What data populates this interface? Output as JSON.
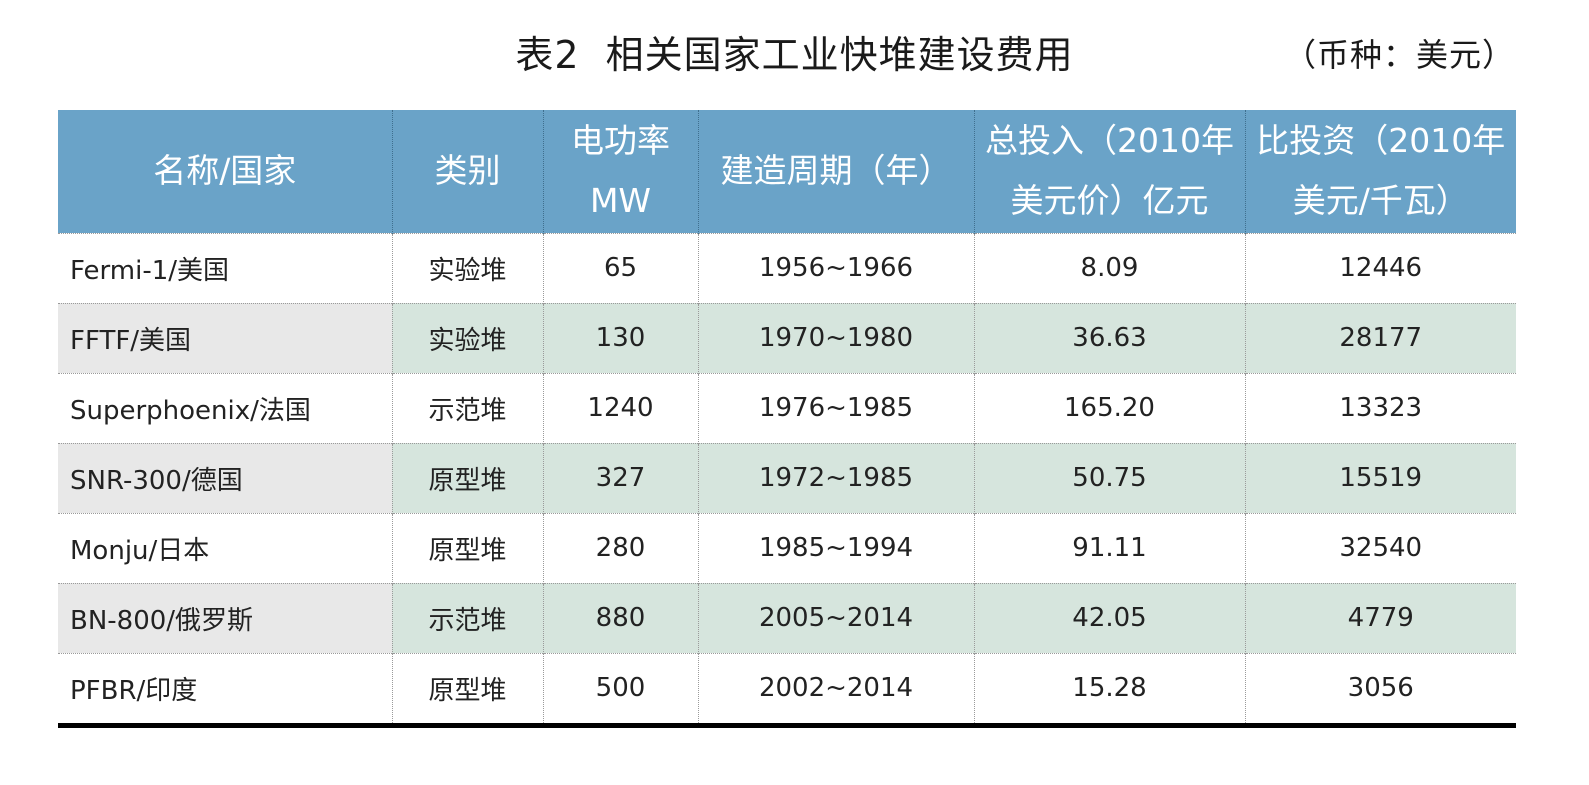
{
  "title": {
    "prefix": "表2",
    "text": "相关国家工业快堆建设费用"
  },
  "currency_note": "（币种：美元）",
  "table": {
    "headers": [
      [
        "名称/国家"
      ],
      [
        "类别"
      ],
      [
        "电功率",
        "MW"
      ],
      [
        "建造周期（年）"
      ],
      [
        "总投入（2010年",
        "美元价）亿元"
      ],
      [
        "比投资（2010年",
        "美元/千瓦）"
      ]
    ],
    "rows": [
      [
        "Fermi-1/美国",
        "实验堆",
        "65",
        "1956~1966",
        "8.09",
        "12446"
      ],
      [
        "FFTF/美国",
        "实验堆",
        "130",
        "1970~1980",
        "36.63",
        "28177"
      ],
      [
        "Superphoenix/法国",
        "示范堆",
        "1240",
        "1976~1985",
        "165.20",
        "13323"
      ],
      [
        "SNR-300/德国",
        "原型堆",
        "327",
        "1972~1985",
        "50.75",
        "15519"
      ],
      [
        "Monju/日本",
        "原型堆",
        "280",
        "1985~1994",
        "91.11",
        "32540"
      ],
      [
        "BN-800/俄罗斯",
        "示范堆",
        "880",
        "2005~2014",
        "42.05",
        "4779"
      ],
      [
        "PFBR/印度",
        "原型堆",
        "500",
        "2002~2014",
        "15.28",
        "3056"
      ]
    ]
  },
  "colors": {
    "header_bg": "#6aa3c8",
    "alt_row_bg": "#d6e5dd",
    "alt_row_first_col_bg": "#e8e8e8"
  }
}
